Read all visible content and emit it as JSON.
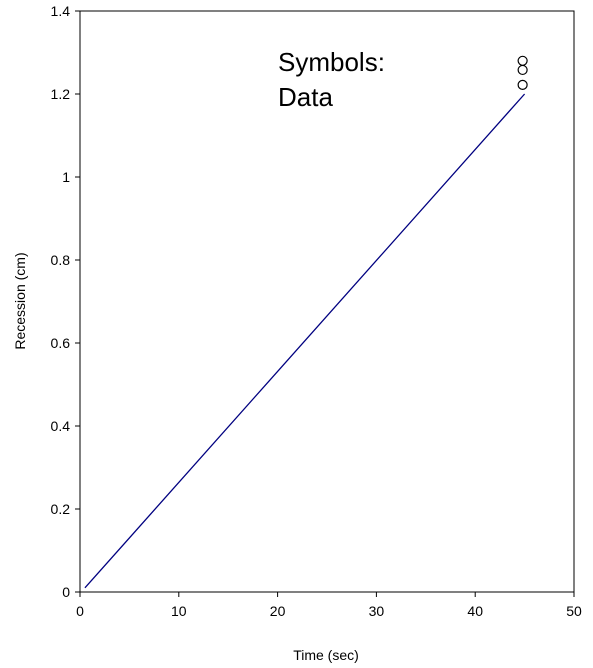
{
  "chart_data": {
    "type": "scatter",
    "title": "",
    "xlabel": "Time (sec)",
    "ylabel": "Recession (cm)",
    "xlim": [
      0,
      50
    ],
    "ylim": [
      0,
      1.4
    ],
    "xticks": [
      "0",
      "10",
      "20",
      "30",
      "40",
      "50"
    ],
    "yticks": [
      "0",
      "0.2",
      "0.4",
      "0.6",
      "0.8",
      "1",
      "1.2",
      "1.4"
    ],
    "grid": false,
    "annotation": [
      "Symbols:",
      "Data"
    ],
    "series": [
      {
        "type": "line",
        "color": "#000080",
        "x": [
          0.5,
          45
        ],
        "y": [
          0.01,
          1.2
        ]
      },
      {
        "type": "scatter",
        "marker": "open-circle",
        "color": "#000000",
        "x": [
          44.8,
          44.8,
          44.8
        ],
        "y": [
          1.28,
          1.258,
          1.222
        ]
      }
    ]
  }
}
